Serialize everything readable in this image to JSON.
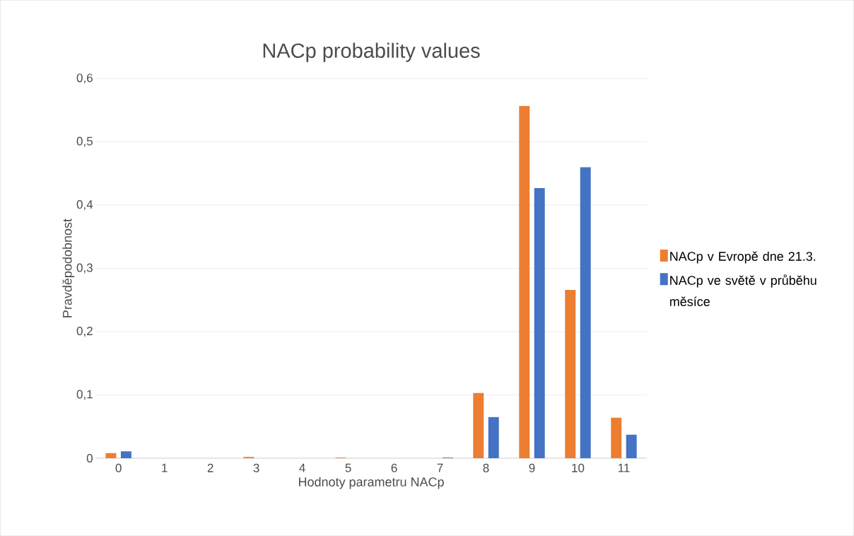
{
  "chart_data": {
    "type": "bar",
    "title": "NACp probability values",
    "xlabel": "Hodnoty parametru NACp",
    "ylabel": "Pravděpodobnost",
    "categories": [
      "0",
      "1",
      "2",
      "3",
      "4",
      "5",
      "6",
      "7",
      "8",
      "9",
      "10",
      "11"
    ],
    "series": [
      {
        "name": "NACp v Evropě dne 21.3.",
        "color": "#ed7d31",
        "values": [
          0.008,
          0,
          0,
          0.002,
          0,
          0.001,
          0,
          0,
          0.103,
          0.557,
          0.266,
          0.064
        ]
      },
      {
        "name": "NACp ve světě v průběhu měsíce",
        "color": "#4472c4",
        "values": [
          0.011,
          0,
          0,
          0,
          0,
          0,
          0,
          0.001,
          0.065,
          0.427,
          0.46,
          0.037
        ]
      }
    ],
    "ylim": [
      0,
      0.6
    ],
    "yticks": [
      {
        "value": 0,
        "label": "0"
      },
      {
        "value": 0.1,
        "label": "0,1"
      },
      {
        "value": 0.2,
        "label": "0,2"
      },
      {
        "value": 0.3,
        "label": "0,3"
      },
      {
        "value": 0.4,
        "label": "0,4"
      },
      {
        "value": 0.5,
        "label": "0,5"
      },
      {
        "value": 0.6,
        "label": "0,6"
      }
    ],
    "grid": "y",
    "legend": "right"
  }
}
